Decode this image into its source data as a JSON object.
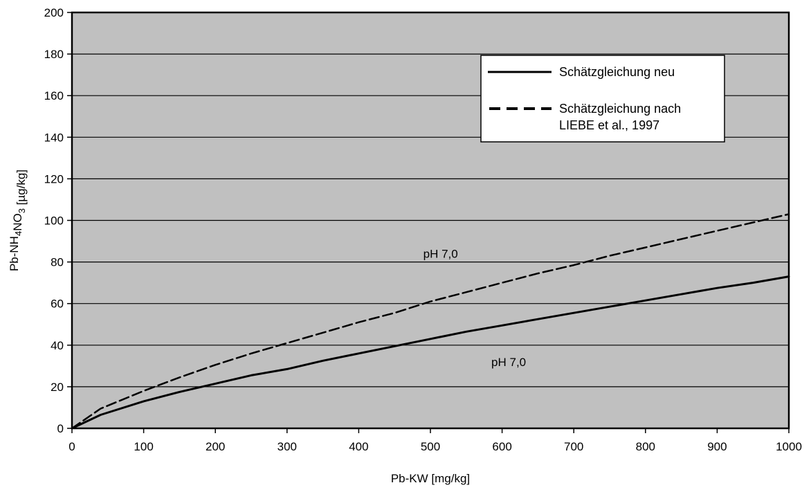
{
  "chart_data": {
    "type": "line",
    "xlabel": "Pb-KW [mg/kg]",
    "ylabel": "Pb-NH₄NO₃ [µg/kg]",
    "xlim": [
      0,
      1000
    ],
    "ylim": [
      0,
      200
    ],
    "xticks": [
      "0",
      "100",
      "200",
      "300",
      "400",
      "500",
      "600",
      "700",
      "800",
      "900",
      "1000"
    ],
    "yticks": [
      "0",
      "20",
      "40",
      "60",
      "80",
      "100",
      "120",
      "140",
      "160",
      "180",
      "200"
    ],
    "grid": "horizontal",
    "legend_position": "top-right",
    "background": "#c0c0c0",
    "series": [
      {
        "name": "Schätzgleichung neu",
        "style": "solid",
        "x": [
          0,
          40,
          100,
          150,
          200,
          250,
          300,
          350,
          400,
          450,
          500,
          550,
          600,
          650,
          700,
          750,
          800,
          850,
          900,
          950,
          1000
        ],
        "y": [
          0,
          6.5,
          13,
          17.5,
          21.5,
          25.5,
          28.5,
          32.5,
          36,
          39.5,
          43,
          46.5,
          49.5,
          52.5,
          55.5,
          58.5,
          61.5,
          64.5,
          67.5,
          70,
          73
        ]
      },
      {
        "name": "Schätzgleichung nach LIEBE et al., 1997",
        "style": "dashed",
        "x": [
          0,
          40,
          100,
          150,
          200,
          250,
          300,
          350,
          400,
          450,
          500,
          550,
          600,
          650,
          700,
          750,
          800,
          850,
          900,
          950,
          1000
        ],
        "y": [
          0,
          9.5,
          18,
          24.5,
          30.5,
          36,
          41,
          46,
          51,
          55.5,
          61,
          65.5,
          70,
          74.5,
          78.5,
          83,
          87,
          91,
          95,
          99,
          103
        ]
      }
    ],
    "annotations": [
      {
        "text": "pH 7,0",
        "x": 490,
        "y": 82
      },
      {
        "text": "pH 7,0",
        "x": 585,
        "y": 30
      }
    ]
  },
  "colors": {
    "plot_background": "#c0c0c0",
    "line": "#000000",
    "grid": "#000000"
  }
}
